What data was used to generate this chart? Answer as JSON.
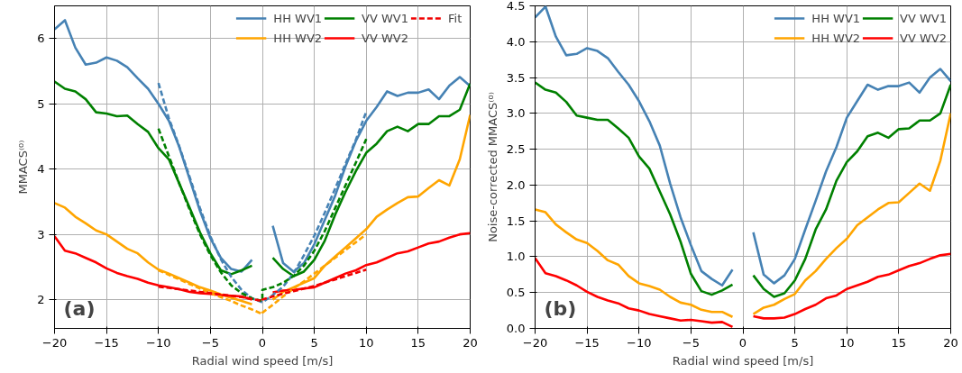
{
  "chart_data": [
    {
      "type": "line",
      "xlabel": "Radial wind speed [m/s]",
      "ylabel": "MMACS⁽⁰⁾",
      "annotations": [
        "(a)"
      ],
      "x": [
        -20,
        -19,
        -18,
        -17,
        -16,
        -15,
        -14,
        -13,
        -12,
        -11,
        -10,
        -9,
        -8,
        -7,
        -6,
        -5,
        -4,
        -3,
        -2,
        -1,
        0,
        1,
        2,
        3,
        4,
        5,
        6,
        7,
        8,
        9,
        10,
        11,
        12,
        13,
        14,
        15,
        16,
        17,
        18,
        19,
        20
      ],
      "xlim": [
        -20,
        20
      ],
      "ylim": [
        1.56,
        6.5
      ],
      "xticks": [
        {
          "value": -20,
          "label": "−20"
        },
        {
          "value": -15,
          "label": "−15"
        },
        {
          "value": -10,
          "label": "−10"
        },
        {
          "value": -5,
          "label": "−5"
        },
        0,
        5,
        10,
        15,
        20
      ],
      "yticks": [
        2,
        3,
        4,
        5,
        6
      ],
      "grid": true,
      "legend": "top right",
      "line_style": "solid",
      "series": [
        {
          "name": "HH WV1",
          "color": "#4682b4",
          "values": [
            6.14,
            6.28,
            5.86,
            5.6,
            5.63,
            5.71,
            5.66,
            5.56,
            5.39,
            5.23,
            5.0,
            4.74,
            4.34,
            3.85,
            3.36,
            2.94,
            2.64,
            2.47,
            2.43,
            2.61,
            null,
            3.13,
            2.56,
            2.43,
            2.56,
            2.85,
            3.22,
            3.59,
            4.04,
            4.43,
            4.74,
            4.95,
            5.19,
            5.12,
            5.17,
            5.17,
            5.22,
            5.07,
            5.28,
            5.41,
            5.27
          ]
        },
        {
          "name": "HH WV2",
          "color": "#ffa500",
          "values": [
            3.48,
            3.41,
            3.27,
            3.17,
            3.06,
            3.0,
            2.89,
            2.78,
            2.71,
            2.57,
            2.46,
            2.4,
            2.33,
            2.26,
            2.19,
            2.14,
            2.08,
            2.03,
            1.98,
            1.93,
            null,
            2.0,
            2.12,
            2.19,
            2.26,
            2.33,
            2.52,
            2.66,
            2.8,
            2.94,
            3.08,
            3.27,
            3.38,
            3.48,
            3.57,
            3.58,
            3.71,
            3.83,
            3.75,
            4.15,
            4.83
          ]
        },
        {
          "name": "VV WV1",
          "color": "#008000",
          "values": [
            5.34,
            5.23,
            5.19,
            5.07,
            4.87,
            4.85,
            4.81,
            4.82,
            4.69,
            4.57,
            4.32,
            4.15,
            3.78,
            3.41,
            3.03,
            2.71,
            2.45,
            2.39,
            2.45,
            2.52,
            null,
            2.64,
            2.47,
            2.36,
            2.43,
            2.61,
            2.9,
            3.3,
            3.65,
            3.97,
            4.25,
            4.39,
            4.58,
            4.65,
            4.58,
            4.69,
            4.69,
            4.81,
            4.81,
            4.91,
            5.31
          ]
        },
        {
          "name": "VV WV2",
          "color": "#ff0000",
          "values": [
            2.97,
            2.75,
            2.71,
            2.64,
            2.57,
            2.48,
            2.41,
            2.36,
            2.32,
            2.26,
            2.22,
            2.19,
            2.16,
            2.12,
            2.1,
            2.09,
            2.07,
            2.06,
            2.05,
            2.0,
            null,
            2.11,
            2.14,
            2.15,
            2.17,
            2.19,
            2.26,
            2.33,
            2.4,
            2.45,
            2.53,
            2.57,
            2.64,
            2.71,
            2.74,
            2.8,
            2.86,
            2.89,
            2.95,
            3.0,
            3.02
          ]
        },
        {
          "color": "#4682b4",
          "line_style": "dashed",
          "x": [
            -10,
            -9,
            -8,
            -7,
            -6,
            -5,
            -4,
            -3,
            -2,
            -1,
            0,
            0,
            1,
            2,
            3,
            4,
            5,
            6,
            7,
            8,
            9,
            10
          ],
          "values": [
            5.32,
            4.78,
            4.35,
            3.88,
            3.4,
            2.97,
            2.62,
            2.35,
            2.15,
            2.02,
            1.96,
            1.96,
            2.07,
            2.2,
            2.4,
            2.68,
            2.98,
            3.33,
            3.7,
            4.08,
            4.45,
            4.88
          ]
        },
        {
          "color": "#008000",
          "line_style": "dashed",
          "x": [
            -10,
            -9,
            -8,
            -7,
            -6,
            -5,
            -4,
            -3,
            -2,
            -1,
            0,
            0,
            1,
            2,
            3,
            4,
            5,
            6,
            7,
            8,
            9,
            10
          ],
          "values": [
            4.62,
            4.2,
            3.78,
            3.38,
            3.0,
            2.68,
            2.42,
            2.22,
            2.1,
            2.02,
            1.98,
            2.15,
            2.19,
            2.26,
            2.36,
            2.52,
            2.75,
            3.05,
            3.4,
            3.75,
            4.1,
            4.46
          ]
        },
        {
          "color": "#ffa500",
          "line_style": "dashed",
          "x": [
            -10,
            -9,
            -8,
            -7,
            -6,
            -5,
            -4,
            -3,
            -2,
            -1,
            0,
            0,
            1,
            2,
            3,
            4,
            5,
            6,
            7,
            8,
            9,
            10
          ],
          "values": [
            2.45,
            2.38,
            2.31,
            2.24,
            2.17,
            2.1,
            2.04,
            1.98,
            1.91,
            1.85,
            1.78,
            1.8,
            1.92,
            2.05,
            2.17,
            2.28,
            2.4,
            2.52,
            2.64,
            2.76,
            2.88,
            3.0
          ]
        },
        {
          "name": "Fit",
          "color": "#f00000",
          "line_style": "dashed",
          "x": [
            -10,
            -9,
            -8,
            -7,
            -6,
            -5,
            -4,
            -3,
            -2,
            -1,
            0,
            0,
            1,
            2,
            3,
            4,
            5,
            6,
            7,
            8,
            9,
            10
          ],
          "values": [
            2.2,
            2.18,
            2.16,
            2.14,
            2.12,
            2.1,
            2.08,
            2.06,
            2.04,
            2.01,
            1.98,
            2.0,
            2.05,
            2.09,
            2.13,
            2.17,
            2.21,
            2.26,
            2.31,
            2.36,
            2.41,
            2.46
          ]
        }
      ]
    },
    {
      "type": "line",
      "xlabel": "Radial wind speed [m/s]",
      "ylabel": "Noise-corrected MMACS⁽⁰⁾",
      "annotations": [
        "(b)"
      ],
      "x": [
        -20,
        -19,
        -18,
        -17,
        -16,
        -15,
        -14,
        -13,
        -12,
        -11,
        -10,
        -9,
        -8,
        -7,
        -6,
        -5,
        -4,
        -3,
        -2,
        -1,
        0,
        1,
        2,
        3,
        4,
        5,
        6,
        7,
        8,
        9,
        10,
        11,
        12,
        13,
        14,
        15,
        16,
        17,
        18,
        19,
        20
      ],
      "xlim": [
        -20,
        20
      ],
      "ylim": [
        0,
        4.5
      ],
      "xticks": [
        {
          "value": -20,
          "label": "−20"
        },
        {
          "value": -15,
          "label": "−15"
        },
        {
          "value": -10,
          "label": "−10"
        },
        {
          "value": -5,
          "label": "−5"
        },
        0,
        5,
        10,
        15,
        20
      ],
      "yticks": [
        {
          "value": 0,
          "label": "0.0"
        },
        0.5,
        {
          "value": 1,
          "label": "1.0"
        },
        1.5,
        {
          "value": 2,
          "label": "2.0"
        },
        2.5,
        {
          "value": 3,
          "label": "3.0"
        },
        3.5,
        {
          "value": 4,
          "label": "4.0"
        },
        4.5
      ],
      "grid": true,
      "legend": "top right",
      "line_style": "solid",
      "series": [
        {
          "name": "HH WV1",
          "color": "#4682b4",
          "values": [
            4.34,
            4.49,
            4.07,
            3.81,
            3.83,
            3.91,
            3.87,
            3.77,
            3.58,
            3.4,
            3.17,
            2.89,
            2.55,
            2.02,
            1.55,
            1.16,
            0.8,
            0.69,
            0.6,
            0.82,
            null,
            1.34,
            0.75,
            0.63,
            0.74,
            0.97,
            1.38,
            1.78,
            2.19,
            2.53,
            2.94,
            3.17,
            3.4,
            3.33,
            3.38,
            3.38,
            3.43,
            3.29,
            3.5,
            3.62,
            3.45
          ]
        },
        {
          "name": "HH WV2",
          "color": "#ffa500",
          "values": [
            1.66,
            1.62,
            1.45,
            1.34,
            1.24,
            1.19,
            1.08,
            0.95,
            0.89,
            0.73,
            0.63,
            0.59,
            0.54,
            0.44,
            0.36,
            0.33,
            0.26,
            0.23,
            0.23,
            0.16,
            null,
            0.2,
            0.29,
            0.33,
            0.41,
            0.48,
            0.67,
            0.8,
            0.97,
            1.12,
            1.25,
            1.44,
            1.55,
            1.66,
            1.75,
            1.76,
            1.89,
            2.02,
            1.92,
            2.34,
            3.0
          ]
        },
        {
          "name": "VV WV1",
          "color": "#008000",
          "values": [
            3.43,
            3.33,
            3.29,
            3.16,
            2.97,
            2.94,
            2.91,
            2.91,
            2.79,
            2.66,
            2.4,
            2.23,
            1.91,
            1.59,
            1.21,
            0.76,
            0.52,
            0.47,
            0.53,
            0.61,
            null,
            0.74,
            0.55,
            0.44,
            0.49,
            0.67,
            0.97,
            1.38,
            1.66,
            2.06,
            2.32,
            2.47,
            2.68,
            2.73,
            2.66,
            2.78,
            2.79,
            2.9,
            2.9,
            3.0,
            3.4
          ]
        },
        {
          "name": "VV WV2",
          "color": "#ff0000",
          "values": [
            0.98,
            0.77,
            0.73,
            0.67,
            0.6,
            0.51,
            0.44,
            0.39,
            0.35,
            0.28,
            0.25,
            0.2,
            0.17,
            0.14,
            0.11,
            0.12,
            0.1,
            0.08,
            0.09,
            0.02,
            null,
            0.17,
            0.14,
            0.14,
            0.15,
            0.2,
            0.27,
            0.33,
            0.42,
            0.46,
            0.55,
            0.6,
            0.65,
            0.72,
            0.75,
            0.81,
            0.87,
            0.91,
            0.97,
            1.02,
            1.04
          ]
        }
      ]
    }
  ]
}
